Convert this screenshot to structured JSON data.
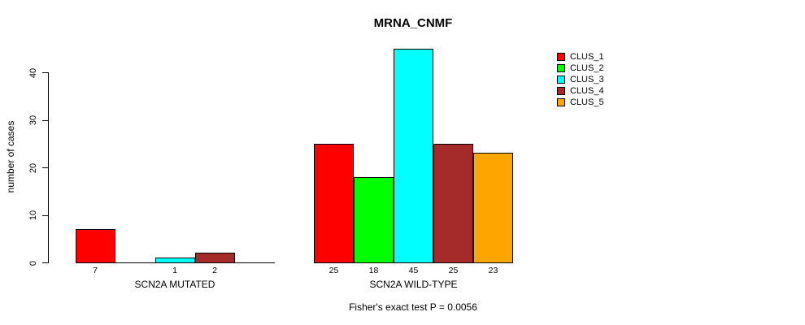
{
  "chart_data": {
    "type": "bar",
    "title": "MRNA_CNMF",
    "ylabel": "number of cases",
    "xlabel": "",
    "ylim": [
      0,
      45
    ],
    "yticks": [
      0,
      10,
      20,
      30,
      40
    ],
    "grid": false,
    "value_labels": "shown under each non-zero bar",
    "series_colors": [
      "#FF0000",
      "#00FF00",
      "#00FFFF",
      "#A52A2A",
      "#FFA500"
    ],
    "groups": [
      {
        "label": "SCN2A MUTATED",
        "values": [
          7,
          0,
          1,
          2,
          0
        ]
      },
      {
        "label": "SCN2A WILD-TYPE",
        "values": [
          25,
          18,
          45,
          25,
          23
        ]
      }
    ],
    "legend": {
      "position": "right",
      "entries": [
        {
          "label": "CLUS_1",
          "color": "#FF0000"
        },
        {
          "label": "CLUS_2",
          "color": "#00FF00"
        },
        {
          "label": "CLUS_3",
          "color": "#00FFFF"
        },
        {
          "label": "CLUS_4",
          "color": "#A52A2A"
        },
        {
          "label": "CLUS_5",
          "color": "#FFA500"
        }
      ]
    },
    "caption": "Fisher's exact test P = 0.0056"
  }
}
